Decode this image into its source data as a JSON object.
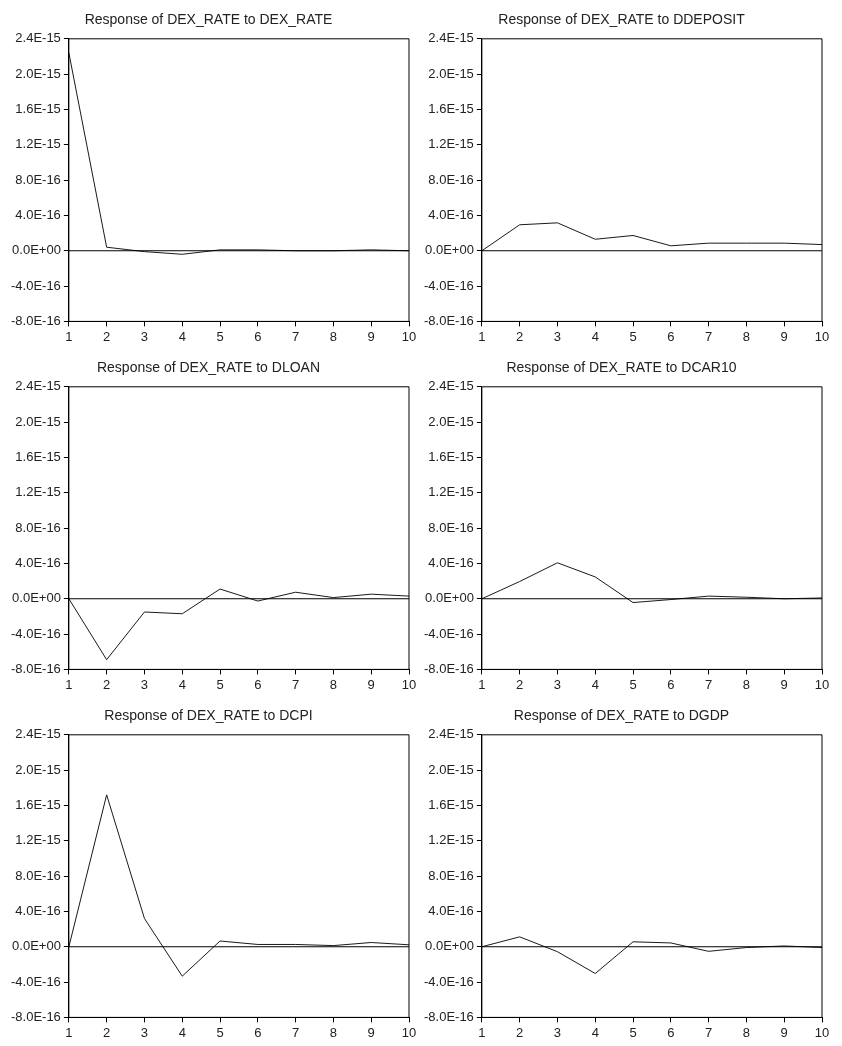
{
  "chart_data": [
    {
      "type": "line",
      "title": "Response of DEX_RATE to DEX_RATE",
      "x": [
        1,
        2,
        3,
        4,
        5,
        6,
        7,
        8,
        9,
        10
      ],
      "xlim": [
        1,
        10
      ],
      "xticks": [
        1,
        2,
        3,
        4,
        5,
        6,
        7,
        8,
        9,
        10
      ],
      "ylim": [
        -8e-16,
        2.4e-15
      ],
      "yticks": [
        {
          "value": -8e-16,
          "label": "-8.0E-16"
        },
        {
          "value": -4e-16,
          "label": "-4.0E-16"
        },
        {
          "value": 0,
          "label": "0.0E+00"
        },
        {
          "value": 4e-16,
          "label": "4.0E-16"
        },
        {
          "value": 8e-16,
          "label": "8.0E-16"
        },
        {
          "value": 1.2e-15,
          "label": "1.2E-15"
        },
        {
          "value": 1.6e-15,
          "label": "1.6E-15"
        },
        {
          "value": 2e-15,
          "label": "2.0E-15"
        },
        {
          "value": 2.4e-15,
          "label": "2.4E-15"
        }
      ],
      "marker": "none",
      "ref_lines": [
        {
          "axis": "y",
          "value": 0,
          "color": "#000000"
        }
      ],
      "series": [
        {
          "color": "#1a1a1a",
          "values": [
            2.24e-15,
            4e-17,
            -1e-17,
            -4e-17,
            1e-17,
            1e-17,
            0,
            0,
            1e-17,
            0
          ]
        }
      ]
    },
    {
      "type": "line",
      "title": "Response of DEX_RATE to DDEPOSIT",
      "x": [
        1,
        2,
        3,
        4,
        5,
        6,
        7,
        8,
        9,
        10
      ],
      "xlim": [
        1,
        10
      ],
      "xticks": [
        1,
        2,
        3,
        4,
        5,
        6,
        7,
        8,
        9,
        10
      ],
      "ylim": [
        -8e-16,
        2.4e-15
      ],
      "yticks": [
        {
          "value": -8e-16,
          "label": "-8.0E-16"
        },
        {
          "value": -4e-16,
          "label": "-4.0E-16"
        },
        {
          "value": 0,
          "label": "0.0E+00"
        },
        {
          "value": 4e-16,
          "label": "4.0E-16"
        },
        {
          "value": 8e-16,
          "label": "8.0E-16"
        },
        {
          "value": 1.2e-15,
          "label": "1.2E-15"
        },
        {
          "value": 1.6e-15,
          "label": "1.6E-15"
        },
        {
          "value": 2e-15,
          "label": "2.0E-15"
        },
        {
          "value": 2.4e-15,
          "label": "2.4E-15"
        }
      ],
      "marker": "none",
      "ref_lines": [
        {
          "axis": "y",
          "value": 0,
          "color": "#000000"
        }
      ],
      "series": [
        {
          "color": "#1a1a1a",
          "values": [
            0,
            2.94e-16,
            3.16e-16,
            1.3e-16,
            1.73e-16,
            5.6e-17,
            8.6e-17,
            8.6e-17,
            8.6e-17,
            7e-17
          ]
        }
      ]
    },
    {
      "type": "line",
      "title": "Response of DEX_RATE to DLOAN",
      "x": [
        1,
        2,
        3,
        4,
        5,
        6,
        7,
        8,
        9,
        10
      ],
      "xlim": [
        1,
        10
      ],
      "xticks": [
        1,
        2,
        3,
        4,
        5,
        6,
        7,
        8,
        9,
        10
      ],
      "ylim": [
        -8e-16,
        2.4e-15
      ],
      "yticks": [
        {
          "value": -8e-16,
          "label": "-8.0E-16"
        },
        {
          "value": -4e-16,
          "label": "-4.0E-16"
        },
        {
          "value": 0,
          "label": "0.0E+00"
        },
        {
          "value": 4e-16,
          "label": "4.0E-16"
        },
        {
          "value": 8e-16,
          "label": "8.0E-16"
        },
        {
          "value": 1.2e-15,
          "label": "1.2E-15"
        },
        {
          "value": 1.6e-15,
          "label": "1.6E-15"
        },
        {
          "value": 2e-15,
          "label": "2.0E-15"
        },
        {
          "value": 2.4e-15,
          "label": "2.4E-15"
        }
      ],
      "marker": "none",
      "ref_lines": [
        {
          "axis": "y",
          "value": 0,
          "color": "#000000"
        }
      ],
      "series": [
        {
          "color": "#1a1a1a",
          "values": [
            0,
            -6.9e-16,
            -1.5e-16,
            -1.7e-16,
            1.1e-16,
            -2.6e-17,
            7.4e-17,
            1.3e-17,
            5.2e-17,
            3e-17
          ]
        }
      ]
    },
    {
      "type": "line",
      "title": "Response of DEX_RATE to DCAR10",
      "x": [
        1,
        2,
        3,
        4,
        5,
        6,
        7,
        8,
        9,
        10
      ],
      "xlim": [
        1,
        10
      ],
      "xticks": [
        1,
        2,
        3,
        4,
        5,
        6,
        7,
        8,
        9,
        10
      ],
      "ylim": [
        -8e-16,
        2.4e-15
      ],
      "yticks": [
        {
          "value": -8e-16,
          "label": "-8.0E-16"
        },
        {
          "value": -4e-16,
          "label": "-4.0E-16"
        },
        {
          "value": 0,
          "label": "0.0E+00"
        },
        {
          "value": 4e-16,
          "label": "4.0E-16"
        },
        {
          "value": 8e-16,
          "label": "8.0E-16"
        },
        {
          "value": 1.2e-15,
          "label": "1.2E-15"
        },
        {
          "value": 1.6e-15,
          "label": "1.6E-15"
        },
        {
          "value": 2e-15,
          "label": "2.0E-15"
        },
        {
          "value": 2.4e-15,
          "label": "2.4E-15"
        }
      ],
      "marker": "none",
      "ref_lines": [
        {
          "axis": "y",
          "value": 0,
          "color": "#000000"
        }
      ],
      "series": [
        {
          "color": "#1a1a1a",
          "values": [
            0,
            1.95e-16,
            4.07e-16,
            2.47e-16,
            -4.3e-17,
            -9e-18,
            3e-17,
            1.7e-17,
            0,
            9e-18
          ]
        }
      ]
    },
    {
      "type": "line",
      "title": "Response of DEX_RATE to DCPI",
      "x": [
        1,
        2,
        3,
        4,
        5,
        6,
        7,
        8,
        9,
        10
      ],
      "xlim": [
        1,
        10
      ],
      "xticks": [
        1,
        2,
        3,
        4,
        5,
        6,
        7,
        8,
        9,
        10
      ],
      "ylim": [
        -8e-16,
        2.4e-15
      ],
      "yticks": [
        {
          "value": -8e-16,
          "label": "-8.0E-16"
        },
        {
          "value": -4e-16,
          "label": "-4.0E-16"
        },
        {
          "value": 0,
          "label": "0.0E+00"
        },
        {
          "value": 4e-16,
          "label": "4.0E-16"
        },
        {
          "value": 8e-16,
          "label": "8.0E-16"
        },
        {
          "value": 1.2e-15,
          "label": "1.2E-15"
        },
        {
          "value": 1.6e-15,
          "label": "1.6E-15"
        },
        {
          "value": 2e-15,
          "label": "2.0E-15"
        },
        {
          "value": 2.4e-15,
          "label": "2.4E-15"
        }
      ],
      "marker": "none",
      "ref_lines": [
        {
          "axis": "y",
          "value": 0,
          "color": "#000000"
        }
      ],
      "series": [
        {
          "color": "#1a1a1a",
          "values": [
            0,
            1.72e-15,
            3.2e-16,
            -3.33e-16,
            6.5e-17,
            2.6e-17,
            2.6e-17,
            1.3e-17,
            4.8e-17,
            2.2e-17
          ]
        }
      ]
    },
    {
      "type": "line",
      "title": "Response of DEX_RATE to DGDP",
      "x": [
        1,
        2,
        3,
        4,
        5,
        6,
        7,
        8,
        9,
        10
      ],
      "xlim": [
        1,
        10
      ],
      "xticks": [
        1,
        2,
        3,
        4,
        5,
        6,
        7,
        8,
        9,
        10
      ],
      "ylim": [
        -8e-16,
        2.4e-15
      ],
      "yticks": [
        {
          "value": -8e-16,
          "label": "-8.0E-16"
        },
        {
          "value": -4e-16,
          "label": "-4.0E-16"
        },
        {
          "value": 0,
          "label": "0.0E+00"
        },
        {
          "value": 4e-16,
          "label": "4.0E-16"
        },
        {
          "value": 8e-16,
          "label": "8.0E-16"
        },
        {
          "value": 1.2e-15,
          "label": "1.2E-15"
        },
        {
          "value": 1.6e-15,
          "label": "1.6E-15"
        },
        {
          "value": 2e-15,
          "label": "2.0E-15"
        },
        {
          "value": 2.4e-15,
          "label": "2.4E-15"
        }
      ],
      "marker": "none",
      "ref_lines": [
        {
          "axis": "y",
          "value": 0,
          "color": "#000000"
        }
      ],
      "series": [
        {
          "color": "#1a1a1a",
          "values": [
            0,
            1.12e-16,
            -5.6e-17,
            -3.03e-16,
            5.6e-17,
            4.3e-17,
            -5.2e-17,
            -9e-18,
            9e-18,
            -9e-18
          ]
        }
      ]
    }
  ]
}
